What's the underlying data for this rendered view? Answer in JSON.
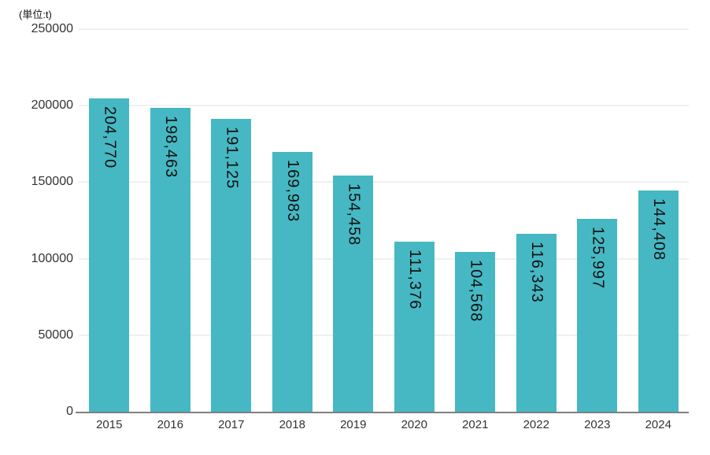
{
  "unit_label": "(単位:t)",
  "colors": {
    "bar": "#46b8c3",
    "grid": "#f0f0f0",
    "axis": "#808080",
    "tick_text": "#333333",
    "value_text": "#111111"
  },
  "chart_data": {
    "type": "bar",
    "categories": [
      "2015",
      "2016",
      "2017",
      "2018",
      "2019",
      "2020",
      "2021",
      "2022",
      "2023",
      "2024"
    ],
    "values": [
      204770,
      198463,
      191125,
      169983,
      154458,
      111376,
      104568,
      116343,
      125997,
      144408
    ],
    "value_labels": [
      "204,770",
      "198,463",
      "191,125",
      "169,983",
      "154,458",
      "111,376",
      "104,568",
      "116,343",
      "125,997",
      "144,408"
    ],
    "title": "",
    "xlabel": "",
    "ylabel": "(単位:t)",
    "ylim": [
      0,
      250000
    ],
    "yticks": [
      0,
      50000,
      100000,
      150000,
      200000,
      250000
    ],
    "ytick_labels": [
      "0",
      "50000",
      "100000",
      "150000",
      "200000",
      "250000"
    ],
    "grid": true,
    "legend_position": "none",
    "bar_label_rotation_deg": 90
  }
}
